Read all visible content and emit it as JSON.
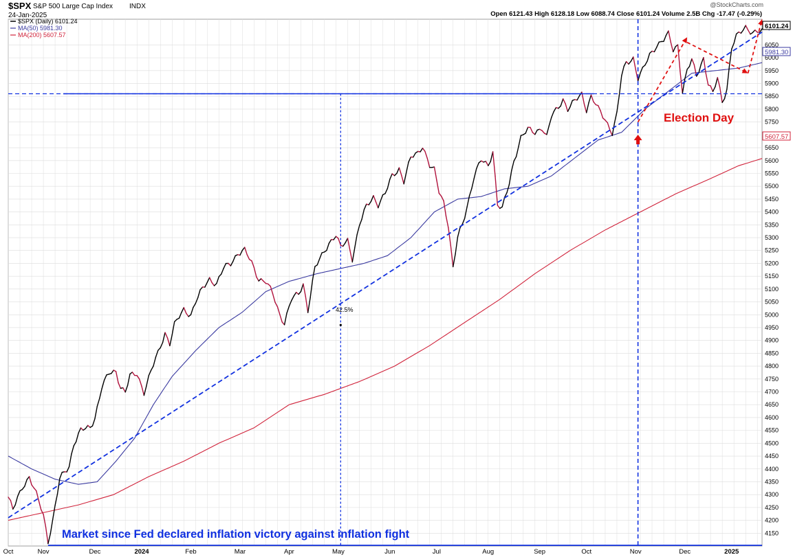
{
  "header": {
    "symbol": "$SPX",
    "name": "S&P 500 Large Cap Index",
    "exchange": "INDX",
    "date": "24-Jan-2025",
    "watermark": "@StockCharts.com",
    "ohlc_line": "Open 6121.43  High 6128.18  Low 6088.74  Close 6101.24  Volume 2.5B  Chg -17.47 (-0.29%)"
  },
  "legend": {
    "price": "$SPX (Daily) 6101.24",
    "ma50": "MA(50) 5981.30",
    "ma200": "MA(200) 5607.57"
  },
  "annotations": {
    "election": "Election Day",
    "gain": "42.5%",
    "bottom_text": "Market since Fed declared inflation victory against inflation fight"
  },
  "price_tags": {
    "last": "6101.24",
    "ma50": "5981.30",
    "ma200": "5607.57"
  },
  "colors": {
    "price_up": "#000000",
    "price_down": "#b0123c",
    "ma50": "#3a3aa0",
    "ma200": "#d0223a",
    "trend_blue": "#1030e0",
    "annotation_red": "#e01010",
    "grid": "#dcdcdc"
  },
  "chart_data": {
    "type": "line",
    "ylim": [
      4100,
      6150
    ],
    "y_ticks": [
      4150,
      4200,
      4250,
      4300,
      4350,
      4400,
      4450,
      4500,
      4550,
      4600,
      4650,
      4700,
      4750,
      4800,
      4850,
      4900,
      4950,
      5000,
      5050,
      5100,
      5150,
      5200,
      5250,
      5300,
      5350,
      5400,
      5450,
      5500,
      5550,
      5600,
      5650,
      5700,
      5750,
      5800,
      5850,
      5900,
      5950,
      6000,
      6050
    ],
    "x_labels": [
      "Oct",
      "Nov",
      "Dec",
      "2024",
      "Feb",
      "Mar",
      "Apr",
      "May",
      "Jun",
      "Jul",
      "Aug",
      "Sep",
      "Oct",
      "Nov",
      "Dec",
      "2025"
    ],
    "x_label_index": [
      0,
      15,
      37,
      57,
      78,
      99,
      120,
      141,
      163,
      183,
      205,
      227,
      247,
      268,
      289,
      309
    ],
    "n_points": 323,
    "series": [
      {
        "name": "$SPX (Daily)",
        "key": "price",
        "anchors": [
          [
            0,
            4290
          ],
          [
            2,
            4240
          ],
          [
            6,
            4330
          ],
          [
            9,
            4370
          ],
          [
            12,
            4300
          ],
          [
            15,
            4220
          ],
          [
            17,
            4120
          ],
          [
            19,
            4200
          ],
          [
            22,
            4360
          ],
          [
            26,
            4410
          ],
          [
            28,
            4500
          ],
          [
            31,
            4550
          ],
          [
            35,
            4560
          ],
          [
            37,
            4600
          ],
          [
            40,
            4720
          ],
          [
            43,
            4770
          ],
          [
            46,
            4780
          ],
          [
            48,
            4720
          ],
          [
            50,
            4700
          ],
          [
            52,
            4760
          ],
          [
            55,
            4770
          ],
          [
            58,
            4700
          ],
          [
            61,
            4780
          ],
          [
            64,
            4850
          ],
          [
            67,
            4930
          ],
          [
            69,
            4890
          ],
          [
            71,
            4960
          ],
          [
            75,
            5020
          ],
          [
            78,
            5000
          ],
          [
            80,
            5050
          ],
          [
            83,
            5100
          ],
          [
            86,
            5140
          ],
          [
            89,
            5120
          ],
          [
            92,
            5180
          ],
          [
            95,
            5200
          ],
          [
            98,
            5240
          ],
          [
            101,
            5250
          ],
          [
            104,
            5200
          ],
          [
            107,
            5140
          ],
          [
            110,
            5130
          ],
          [
            113,
            5080
          ],
          [
            116,
            5000
          ],
          [
            118,
            4970
          ],
          [
            121,
            5060
          ],
          [
            124,
            5080
          ],
          [
            126,
            5120
          ],
          [
            128,
            5020
          ],
          [
            131,
            5180
          ],
          [
            134,
            5230
          ],
          [
            137,
            5280
          ],
          [
            140,
            5310
          ],
          [
            142,
            5260
          ],
          [
            145,
            5290
          ],
          [
            147,
            5220
          ],
          [
            150,
            5350
          ],
          [
            153,
            5420
          ],
          [
            156,
            5460
          ],
          [
            158,
            5430
          ],
          [
            161,
            5470
          ],
          [
            164,
            5540
          ],
          [
            167,
            5570
          ],
          [
            169,
            5520
          ],
          [
            172,
            5610
          ],
          [
            175,
            5630
          ],
          [
            177,
            5660
          ],
          [
            180,
            5580
          ],
          [
            182,
            5560
          ],
          [
            184,
            5480
          ],
          [
            186,
            5440
          ],
          [
            188,
            5350
          ],
          [
            190,
            5180
          ],
          [
            192,
            5300
          ],
          [
            194,
            5350
          ],
          [
            197,
            5460
          ],
          [
            199,
            5540
          ],
          [
            202,
            5600
          ],
          [
            205,
            5580
          ],
          [
            207,
            5640
          ],
          [
            209,
            5430
          ],
          [
            211,
            5410
          ],
          [
            214,
            5510
          ],
          [
            216,
            5600
          ],
          [
            219,
            5690
          ],
          [
            222,
            5720
          ],
          [
            225,
            5710
          ],
          [
            228,
            5730
          ],
          [
            230,
            5690
          ],
          [
            232,
            5770
          ],
          [
            235,
            5810
          ],
          [
            237,
            5840
          ],
          [
            239,
            5800
          ],
          [
            242,
            5830
          ],
          [
            245,
            5860
          ],
          [
            247,
            5800
          ],
          [
            249,
            5850
          ],
          [
            252,
            5800
          ],
          [
            255,
            5760
          ],
          [
            258,
            5710
          ],
          [
            260,
            5780
          ],
          [
            262,
            5930
          ],
          [
            264,
            5980
          ],
          [
            267,
            6000
          ],
          [
            269,
            5920
          ],
          [
            271,
            5950
          ],
          [
            274,
            6010
          ],
          [
            277,
            6050
          ],
          [
            280,
            6070
          ],
          [
            282,
            6090
          ],
          [
            284,
            6030
          ],
          [
            286,
            6050
          ],
          [
            288,
            5870
          ],
          [
            290,
            5950
          ],
          [
            292,
            5990
          ],
          [
            294,
            5930
          ],
          [
            297,
            6000
          ],
          [
            299,
            5900
          ],
          [
            301,
            5860
          ],
          [
            303,
            5920
          ],
          [
            305,
            5830
          ],
          [
            307,
            5880
          ],
          [
            309,
            6040
          ],
          [
            311,
            6080
          ],
          [
            313,
            6100
          ],
          [
            315,
            6120
          ],
          [
            318,
            6100
          ],
          [
            322,
            6101
          ]
        ]
      },
      {
        "name": "MA(50)",
        "key": "ma50",
        "anchors": [
          [
            0,
            4450
          ],
          [
            10,
            4400
          ],
          [
            20,
            4360
          ],
          [
            30,
            4340
          ],
          [
            38,
            4350
          ],
          [
            46,
            4430
          ],
          [
            54,
            4520
          ],
          [
            62,
            4650
          ],
          [
            70,
            4760
          ],
          [
            80,
            4860
          ],
          [
            90,
            4950
          ],
          [
            100,
            5010
          ],
          [
            110,
            5090
          ],
          [
            120,
            5130
          ],
          [
            132,
            5160
          ],
          [
            142,
            5180
          ],
          [
            152,
            5200
          ],
          [
            162,
            5230
          ],
          [
            172,
            5300
          ],
          [
            182,
            5400
          ],
          [
            192,
            5450
          ],
          [
            202,
            5460
          ],
          [
            212,
            5490
          ],
          [
            222,
            5500
          ],
          [
            232,
            5540
          ],
          [
            242,
            5610
          ],
          [
            252,
            5680
          ],
          [
            262,
            5710
          ],
          [
            272,
            5800
          ],
          [
            282,
            5870
          ],
          [
            292,
            5940
          ],
          [
            302,
            5950
          ],
          [
            312,
            5960
          ],
          [
            322,
            5981
          ]
        ]
      },
      {
        "name": "MA(200)",
        "key": "ma200",
        "anchors": [
          [
            0,
            4200
          ],
          [
            15,
            4230
          ],
          [
            30,
            4260
          ],
          [
            45,
            4300
          ],
          [
            60,
            4370
          ],
          [
            75,
            4430
          ],
          [
            90,
            4500
          ],
          [
            105,
            4560
          ],
          [
            120,
            4650
          ],
          [
            135,
            4690
          ],
          [
            150,
            4740
          ],
          [
            165,
            4800
          ],
          [
            180,
            4880
          ],
          [
            195,
            4970
          ],
          [
            210,
            5060
          ],
          [
            225,
            5160
          ],
          [
            240,
            5250
          ],
          [
            255,
            5330
          ],
          [
            270,
            5400
          ],
          [
            285,
            5470
          ],
          [
            300,
            5530
          ],
          [
            312,
            5580
          ],
          [
            322,
            5608
          ]
        ]
      }
    ],
    "horizontal_line": 5860,
    "trendline": {
      "from": [
        0,
        4210
      ],
      "to": [
        322,
        6100
      ]
    },
    "vertical_markers": [
      142,
      269
    ],
    "red_arrows": [
      {
        "from": [
          269,
          5750
        ],
        "to": [
          290,
          6080
        ]
      },
      {
        "from": [
          290,
          6060
        ],
        "to": [
          316,
          5940
        ]
      },
      {
        "from": [
          316,
          5940
        ],
        "to": [
          322,
          6150
        ]
      }
    ]
  }
}
